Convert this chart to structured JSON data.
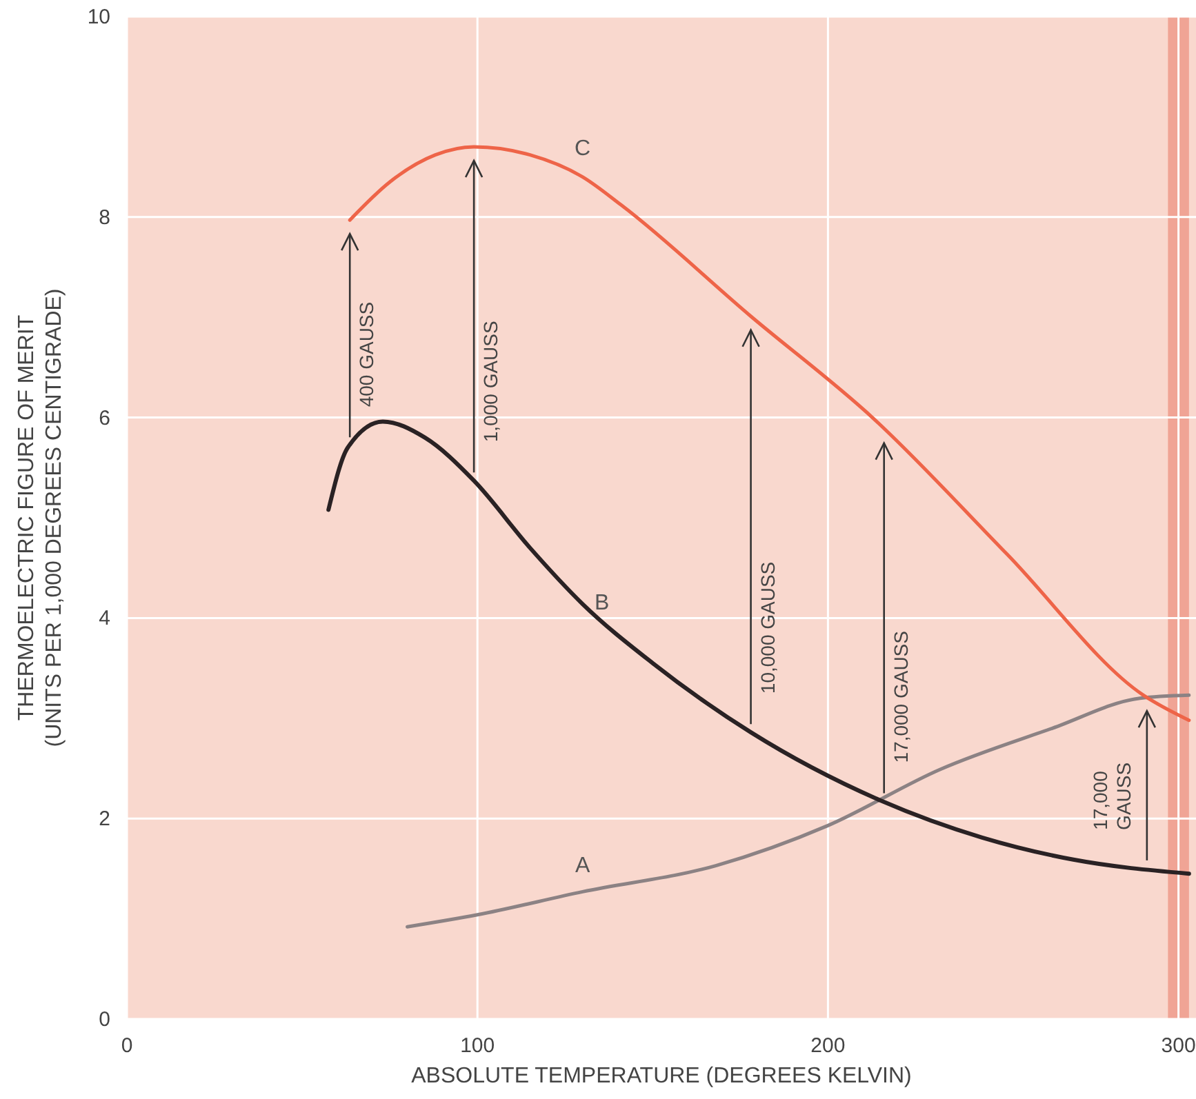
{
  "chart_data": {
    "type": "line",
    "xlabel": "ABSOLUTE TEMPERATURE (DEGREES KELVIN)",
    "ylabel": "THERMOELECTRIC FIGURE OF MERIT\n(UNITS PER 1,000 DEGREES CENTIGRADE)",
    "xlim": [
      0,
      305
    ],
    "ylim": [
      0,
      10
    ],
    "xticks": [
      0,
      100,
      200,
      300
    ],
    "yticks": [
      0,
      2,
      4,
      6,
      8,
      10
    ],
    "grid": true,
    "line_style": "solid",
    "series": [
      {
        "name": "A",
        "color": "#8c8284",
        "x": [
          80,
          100,
          130,
          168,
          200,
          232,
          264,
          289,
          303
        ],
        "values": [
          0.92,
          1.04,
          1.27,
          1.53,
          1.93,
          2.49,
          2.9,
          3.2,
          3.23
        ]
      },
      {
        "name": "B",
        "color": "#2a2224",
        "x": [
          57.5,
          63,
          73,
          85,
          99,
          115,
          130,
          150,
          178,
          215,
          244,
          270,
          303
        ],
        "values": [
          5.08,
          5.7,
          5.96,
          5.8,
          5.37,
          4.7,
          4.14,
          3.55,
          2.86,
          2.18,
          1.81,
          1.59,
          1.45
        ]
      },
      {
        "name": "C",
        "color": "#ee6448",
        "x": [
          63.6,
          75,
          88,
          99,
          115,
          130,
          141,
          178,
          213,
          251,
          290,
          303
        ],
        "values": [
          7.97,
          8.35,
          8.62,
          8.7,
          8.62,
          8.4,
          8.12,
          7.01,
          5.99,
          4.64,
          3.23,
          2.98
        ]
      }
    ],
    "bands": [
      {
        "axis": "x",
        "from": 297,
        "to": 303,
        "color": "#f0a495"
      }
    ],
    "annotations": [
      {
        "text": "400 GAUSS",
        "x": 63.6,
        "y": 5.72
      },
      {
        "text": "1,000 GAUSS",
        "x": 99,
        "y": 5.37
      },
      {
        "text": "10,000 GAUSS",
        "x": 178,
        "y": 2.86
      },
      {
        "text": "17,000 GAUSS",
        "x": 216,
        "y": 2.17
      },
      {
        "text": "17,000\nGAUSS",
        "x": 291,
        "y": 1.5
      }
    ]
  }
}
